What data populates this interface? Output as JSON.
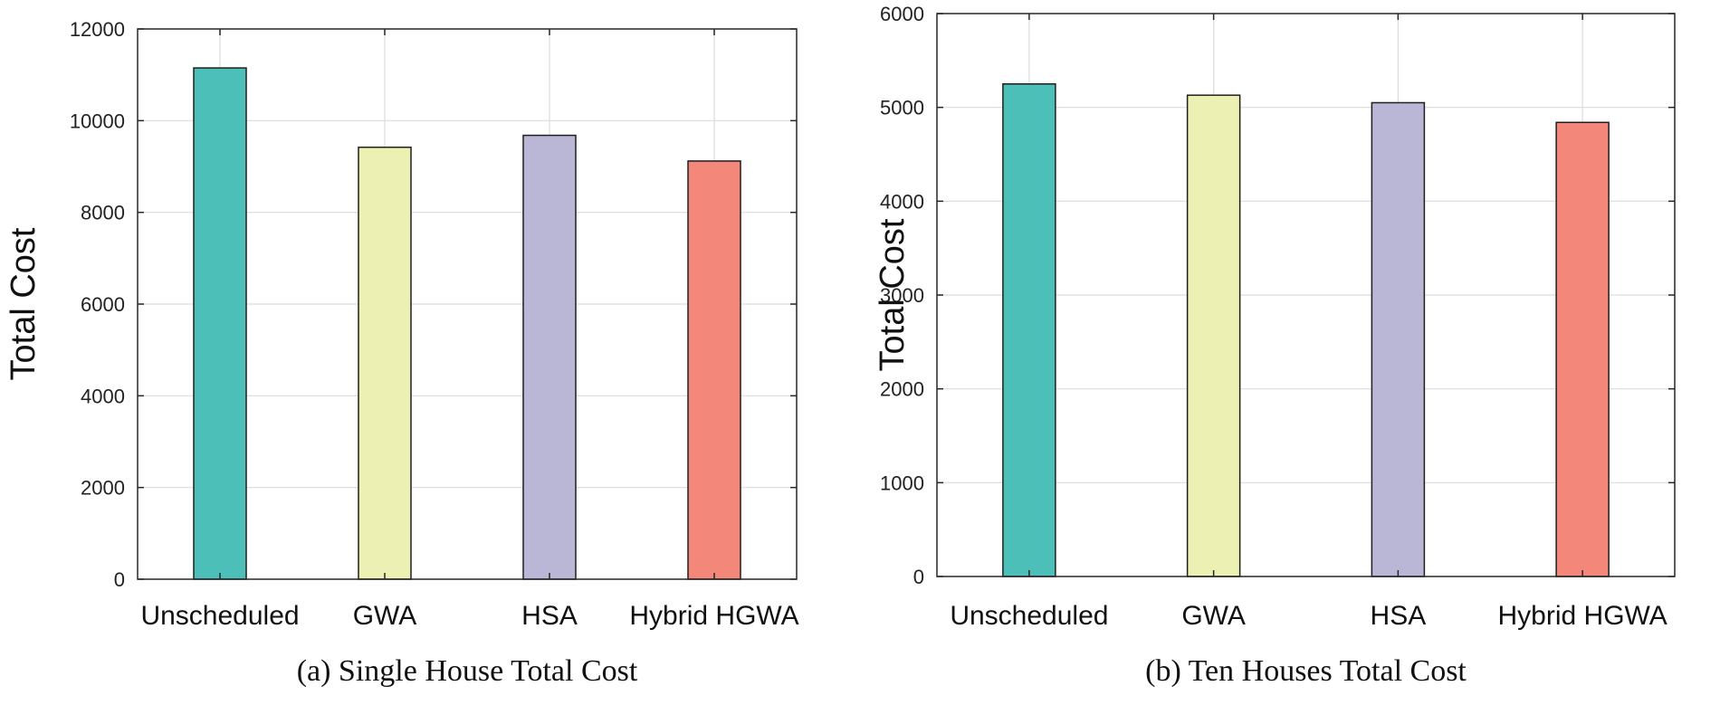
{
  "chart_data": [
    {
      "type": "bar",
      "caption": "(a) Single House Total Cost",
      "ylabel": "Total Cost",
      "xlabel": "",
      "categories": [
        "Unscheduled",
        "GWA",
        "HSA",
        "Hybrid HGWA"
      ],
      "values": [
        11150,
        9420,
        9680,
        9120
      ],
      "colors": [
        "#4cc0b8",
        "#ecf0b2",
        "#bab7d6",
        "#f2877a"
      ],
      "ylim": [
        0,
        12000
      ],
      "yticks": [
        0,
        2000,
        4000,
        6000,
        8000,
        10000,
        12000
      ],
      "grid": true
    },
    {
      "type": "bar",
      "caption": "(b) Ten Houses Total Cost",
      "ylabel": "Total Cost",
      "xlabel": "",
      "categories": [
        "Unscheduled",
        "GWA",
        "HSA",
        "Hybrid HGWA"
      ],
      "values": [
        5250,
        5130,
        5050,
        4840
      ],
      "colors": [
        "#4cc0b8",
        "#ecf0b2",
        "#bab7d6",
        "#f2877a"
      ],
      "ylim": [
        0,
        6000
      ],
      "yticks": [
        0,
        1000,
        2000,
        3000,
        4000,
        5000,
        6000
      ],
      "grid": true
    }
  ]
}
